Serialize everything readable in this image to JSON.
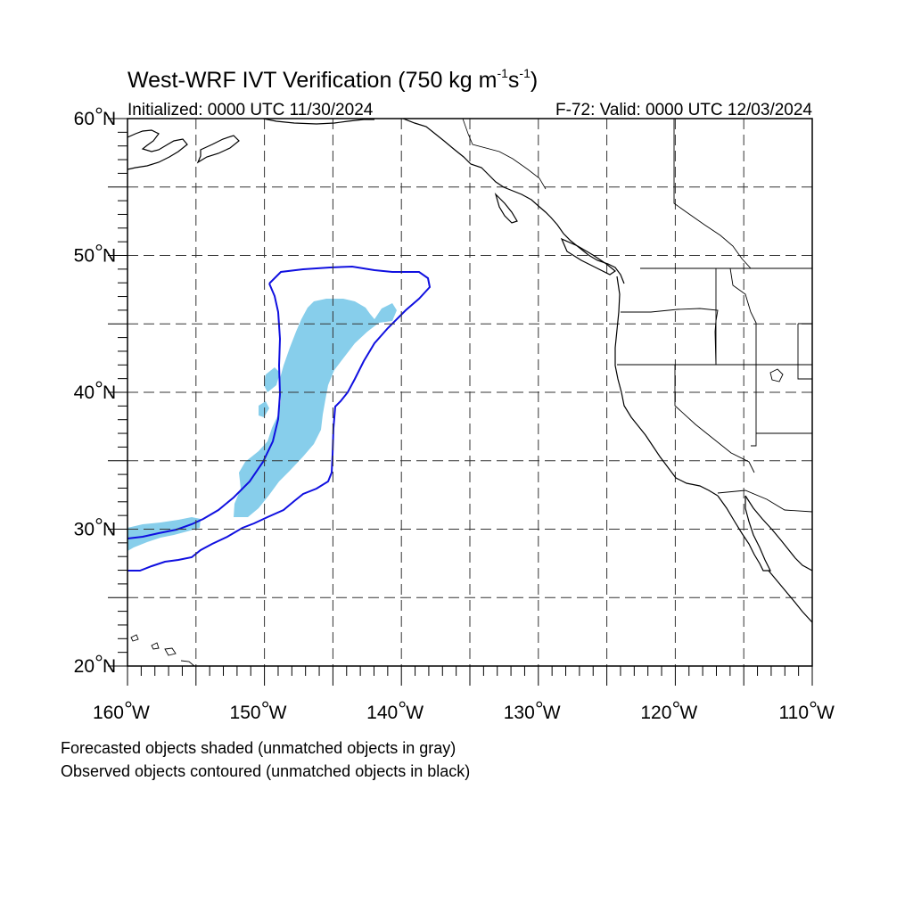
{
  "title": {
    "main": "West-WRF IVT Verification (750 kg m",
    "sup1": "-1",
    "mid": "s",
    "sup2": "-1",
    "end": ")"
  },
  "subtitle_left": "Initialized: 0000 UTC 11/30/2024",
  "subtitle_right": "F-72: Valid: 0000 UTC 12/03/2024",
  "lat_labels": [
    {
      "deg": "60",
      "suffix": "N",
      "lat": 60
    },
    {
      "deg": "50",
      "suffix": "N",
      "lat": 50
    },
    {
      "deg": "40",
      "suffix": "N",
      "lat": 40
    },
    {
      "deg": "30",
      "suffix": "N",
      "lat": 30
    },
    {
      "deg": "20",
      "suffix": "N",
      "lat": 20
    }
  ],
  "lon_labels": [
    {
      "deg": "160",
      "suffix": "W",
      "lon": -160
    },
    {
      "deg": "150",
      "suffix": "W",
      "lon": -150
    },
    {
      "deg": "140",
      "suffix": "W",
      "lon": -140
    },
    {
      "deg": "130",
      "suffix": "W",
      "lon": -130
    },
    {
      "deg": "120",
      "suffix": "W",
      "lon": -120
    },
    {
      "deg": "110",
      "suffix": "W",
      "lon": -110
    }
  ],
  "caption_line1": "Forecasted objects shaded (unmatched objects in gray)",
  "caption_line2": "Observed objects contoured (unmatched objects in black)",
  "colors": {
    "forecast_fill": "#87CEEB",
    "observed_contour": "#1010E0",
    "coastline": "#000000",
    "grid": "#000000"
  },
  "map_extent": {
    "lon": [
      -160,
      -110
    ],
    "lat": [
      20,
      60
    ]
  },
  "grid_spacing_deg": 5
}
